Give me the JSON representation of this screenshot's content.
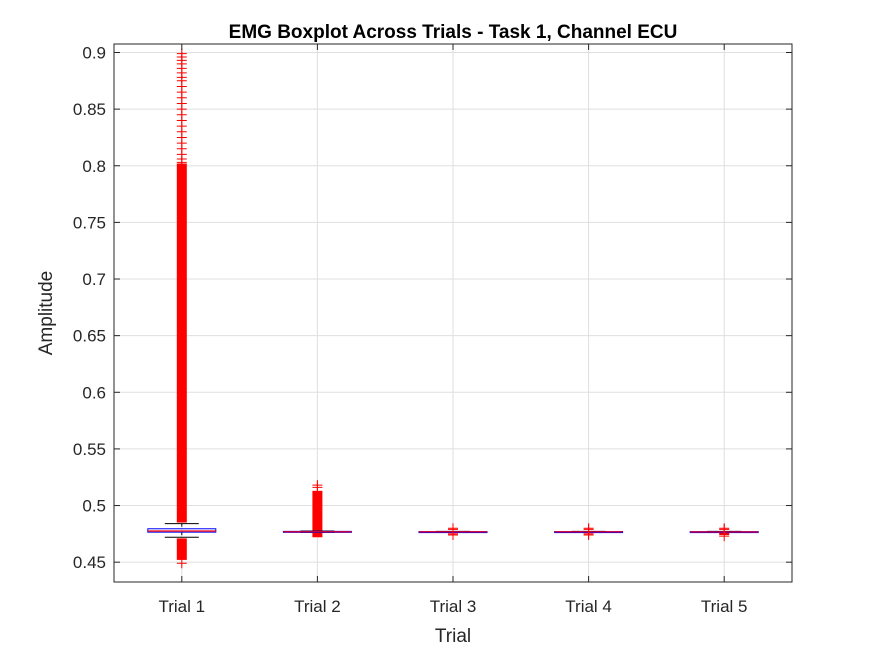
{
  "chart_data": {
    "type": "boxplot",
    "title": "EMG Boxplot Across Trials - Task 1, Channel ECU",
    "xlabel": "Trial",
    "ylabel": "Amplitude",
    "categories": [
      "Trial 1",
      "Trial 2",
      "Trial 3",
      "Trial 4",
      "Trial 5"
    ],
    "ylim": [
      0.4325,
      0.9075
    ],
    "yticks": [
      0.45,
      0.5,
      0.55,
      0.6,
      0.65,
      0.7,
      0.75,
      0.8,
      0.85,
      0.9
    ],
    "grid": true,
    "colors": {
      "box": "#0000ff",
      "median": "#ff0000",
      "outlier": "#ff0000",
      "whisker": "#000000",
      "grid": "#dfdfdf",
      "axis": "#262626"
    },
    "boxes": [
      {
        "category": "Trial 1",
        "q1": 0.4765,
        "median": 0.4775,
        "q3": 0.4795,
        "whisker_low": 0.472,
        "whisker_high": 0.484,
        "outlier_ranges": [
          [
            0.452,
            0.471
          ],
          [
            0.485,
            0.802
          ]
        ],
        "outliers": [
          0.803,
          0.806,
          0.81,
          0.815,
          0.82,
          0.825,
          0.83,
          0.835,
          0.84,
          0.845,
          0.85,
          0.855,
          0.86,
          0.865,
          0.87,
          0.875,
          0.878,
          0.882,
          0.886,
          0.89,
          0.893,
          0.896,
          0.899,
          0.449
        ]
      },
      {
        "category": "Trial 2",
        "q1": 0.4765,
        "median": 0.4768,
        "q3": 0.4772,
        "whisker_low": 0.4763,
        "whisker_high": 0.4775,
        "outlier_ranges": [
          [
            0.472,
            0.476
          ],
          [
            0.478,
            0.513
          ]
        ],
        "outliers": [
          0.516,
          0.518
        ]
      },
      {
        "category": "Trial 3",
        "q1": 0.4766,
        "median": 0.4768,
        "q3": 0.477,
        "whisker_low": 0.4764,
        "whisker_high": 0.4772,
        "outlier_ranges": [],
        "outliers": [
          0.474,
          0.475,
          0.479,
          0.48
        ]
      },
      {
        "category": "Trial 4",
        "q1": 0.4766,
        "median": 0.4768,
        "q3": 0.477,
        "whisker_low": 0.4764,
        "whisker_high": 0.4772,
        "outlier_ranges": [],
        "outliers": [
          0.474,
          0.475,
          0.479,
          0.48
        ]
      },
      {
        "category": "Trial 5",
        "q1": 0.4764,
        "median": 0.4767,
        "q3": 0.477,
        "whisker_low": 0.4762,
        "whisker_high": 0.4772,
        "outlier_ranges": [
          [
            0.474,
            0.4758
          ]
        ],
        "outliers": [
          0.473,
          0.479,
          0.48
        ]
      }
    ]
  }
}
